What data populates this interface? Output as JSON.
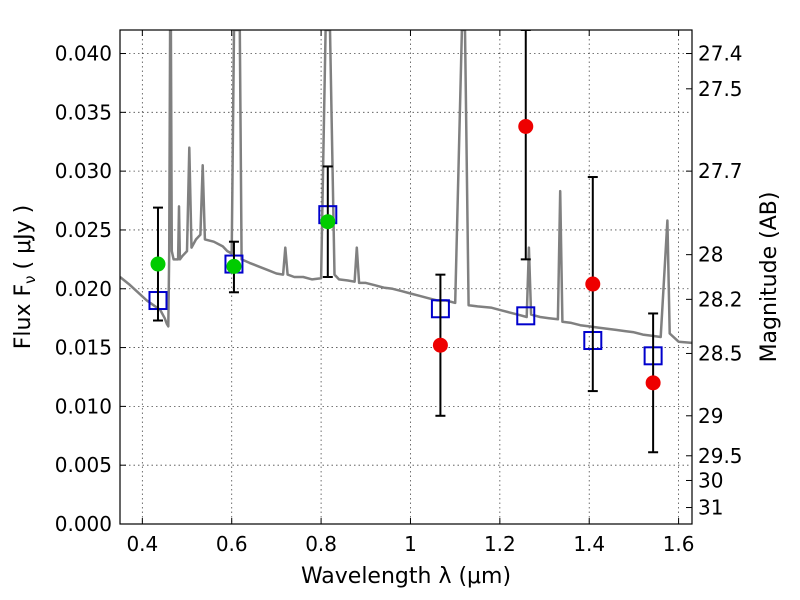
{
  "chart_data": {
    "type": "scatter",
    "xlabel": "Wavelength  λ (μm)",
    "ylabel": "Flux  F",
    "ylabel_subscript": "ν",
    "ylabel_unit": "( μJy )",
    "y2label": "Magnitude (AB)",
    "xlim": [
      0.35,
      1.63
    ],
    "ylim": [
      0.0,
      0.042
    ],
    "grid": true,
    "x_ticks": [
      {
        "value": 0.4,
        "label": "0.4"
      },
      {
        "value": 0.6,
        "label": "0.6"
      },
      {
        "value": 0.8,
        "label": "0.8"
      },
      {
        "value": 1.0,
        "label": "1"
      },
      {
        "value": 1.2,
        "label": "1.2"
      },
      {
        "value": 1.4,
        "label": "1.4"
      },
      {
        "value": 1.6,
        "label": "1.6"
      }
    ],
    "y_ticks": [
      {
        "value": 0.0,
        "label": "0.000"
      },
      {
        "value": 0.005,
        "label": "0.005"
      },
      {
        "value": 0.01,
        "label": "0.010"
      },
      {
        "value": 0.015,
        "label": "0.015"
      },
      {
        "value": 0.02,
        "label": "0.020"
      },
      {
        "value": 0.025,
        "label": "0.025"
      },
      {
        "value": 0.03,
        "label": "0.030"
      },
      {
        "value": 0.035,
        "label": "0.035"
      },
      {
        "value": 0.04,
        "label": "0.040"
      }
    ],
    "y2_ticks": [
      {
        "flux": 0.04,
        "label": "27.4"
      },
      {
        "flux": 0.037,
        "label": "27.5"
      },
      {
        "flux": 0.03,
        "label": "27.7"
      },
      {
        "flux": 0.0229,
        "label": "28"
      },
      {
        "flux": 0.0191,
        "label": "28.2"
      },
      {
        "flux": 0.0145,
        "label": "28.5"
      },
      {
        "flux": 0.0092,
        "label": "29"
      },
      {
        "flux": 0.0058,
        "label": "29.5"
      },
      {
        "flux": 0.0037,
        "label": "30"
      },
      {
        "flux": 0.0014,
        "label": "31"
      }
    ],
    "series": [
      {
        "kind": "line",
        "color": "#808080",
        "points": [
          [
            0.35,
            0.021
          ],
          [
            0.37,
            0.0204
          ],
          [
            0.39,
            0.0197
          ],
          [
            0.41,
            0.019
          ],
          [
            0.425,
            0.0186
          ],
          [
            0.44,
            0.0182
          ],
          [
            0.45,
            0.0175
          ],
          [
            0.455,
            0.017
          ],
          [
            0.458,
            0.0168
          ],
          [
            0.46,
            0.023
          ],
          [
            0.462,
            0.042
          ],
          [
            0.464,
            0.042
          ],
          [
            0.466,
            0.0232
          ],
          [
            0.47,
            0.0225
          ],
          [
            0.48,
            0.0225
          ],
          [
            0.482,
            0.027
          ],
          [
            0.484,
            0.0225
          ],
          [
            0.49,
            0.0228
          ],
          [
            0.5,
            0.0232
          ],
          [
            0.505,
            0.032
          ],
          [
            0.51,
            0.0235
          ],
          [
            0.52,
            0.0242
          ],
          [
            0.53,
            0.0246
          ],
          [
            0.535,
            0.0305
          ],
          [
            0.54,
            0.0242
          ],
          [
            0.56,
            0.024
          ],
          [
            0.58,
            0.0236
          ],
          [
            0.59,
            0.0232
          ],
          [
            0.6,
            0.023
          ],
          [
            0.605,
            0.042
          ],
          [
            0.612,
            0.042
          ],
          [
            0.618,
            0.042
          ],
          [
            0.622,
            0.0225
          ],
          [
            0.64,
            0.0222
          ],
          [
            0.66,
            0.0219
          ],
          [
            0.68,
            0.0216
          ],
          [
            0.7,
            0.0213
          ],
          [
            0.715,
            0.0212
          ],
          [
            0.72,
            0.0235
          ],
          [
            0.725,
            0.0212
          ],
          [
            0.74,
            0.021
          ],
          [
            0.76,
            0.021
          ],
          [
            0.78,
            0.0208
          ],
          [
            0.8,
            0.0209
          ],
          [
            0.81,
            0.042
          ],
          [
            0.82,
            0.042
          ],
          [
            0.83,
            0.0212
          ],
          [
            0.84,
            0.0208
          ],
          [
            0.86,
            0.0207
          ],
          [
            0.875,
            0.0206
          ],
          [
            0.88,
            0.0235
          ],
          [
            0.885,
            0.0205
          ],
          [
            0.9,
            0.0205
          ],
          [
            0.92,
            0.0203
          ],
          [
            0.94,
            0.0201
          ],
          [
            0.96,
            0.02
          ],
          [
            0.98,
            0.0198
          ],
          [
            1.0,
            0.0196
          ],
          [
            1.02,
            0.0194
          ],
          [
            1.04,
            0.0192
          ],
          [
            1.06,
            0.019
          ],
          [
            1.08,
            0.019
          ],
          [
            1.1,
            0.0188
          ],
          [
            1.115,
            0.042
          ],
          [
            1.122,
            0.042
          ],
          [
            1.13,
            0.0186
          ],
          [
            1.15,
            0.0185
          ],
          [
            1.18,
            0.0184
          ],
          [
            1.2,
            0.0182
          ],
          [
            1.22,
            0.018
          ],
          [
            1.24,
            0.0178
          ],
          [
            1.26,
            0.0176
          ],
          [
            1.265,
            0.0235
          ],
          [
            1.27,
            0.0178
          ],
          [
            1.29,
            0.0176
          ],
          [
            1.31,
            0.0175
          ],
          [
            1.33,
            0.0174
          ],
          [
            1.335,
            0.0283
          ],
          [
            1.34,
            0.0172
          ],
          [
            1.36,
            0.0171
          ],
          [
            1.38,
            0.0169
          ],
          [
            1.4,
            0.0168
          ],
          [
            1.42,
            0.0167
          ],
          [
            1.44,
            0.0166
          ],
          [
            1.46,
            0.0165
          ],
          [
            1.48,
            0.0164
          ],
          [
            1.5,
            0.0163
          ],
          [
            1.52,
            0.0161
          ],
          [
            1.54,
            0.016
          ],
          [
            1.56,
            0.0159
          ],
          [
            1.575,
            0.0258
          ],
          [
            1.58,
            0.0162
          ],
          [
            1.6,
            0.0155
          ],
          [
            1.63,
            0.0154
          ]
        ]
      },
      {
        "kind": "open-square",
        "color": "#0000cc",
        "points": [
          [
            0.435,
            0.019
          ],
          [
            0.605,
            0.0221
          ],
          [
            0.815,
            0.0263
          ],
          [
            1.067,
            0.0183
          ],
          [
            1.258,
            0.0177
          ],
          [
            1.408,
            0.0156
          ],
          [
            1.543,
            0.0143
          ]
        ]
      },
      {
        "kind": "errorbar",
        "color": "#000000",
        "points": [
          {
            "x": 0.435,
            "y": 0.0221,
            "lo": 0.0173,
            "hi": 0.0269
          },
          {
            "x": 0.605,
            "y": 0.0219,
            "lo": 0.0197,
            "hi": 0.024
          },
          {
            "x": 0.815,
            "y": 0.0257,
            "lo": 0.021,
            "hi": 0.0304
          },
          {
            "x": 1.067,
            "y": 0.0152,
            "lo": 0.0092,
            "hi": 0.0212
          },
          {
            "x": 1.258,
            "y": 0.0338,
            "lo": 0.0225,
            "hi": 0.042
          },
          {
            "x": 1.408,
            "y": 0.0204,
            "lo": 0.0113,
            "hi": 0.0295
          },
          {
            "x": 1.543,
            "y": 0.012,
            "lo": 0.0061,
            "hi": 0.0179
          }
        ]
      },
      {
        "kind": "filled-circle",
        "color": "#00cc00",
        "points": [
          [
            0.435,
            0.0221
          ],
          [
            0.605,
            0.0219
          ],
          [
            0.815,
            0.0257
          ]
        ]
      },
      {
        "kind": "filled-circle",
        "color": "#ee0000",
        "points": [
          [
            1.067,
            0.0152
          ],
          [
            1.258,
            0.0338
          ],
          [
            1.408,
            0.0204
          ],
          [
            1.543,
            0.012
          ]
        ]
      }
    ]
  }
}
